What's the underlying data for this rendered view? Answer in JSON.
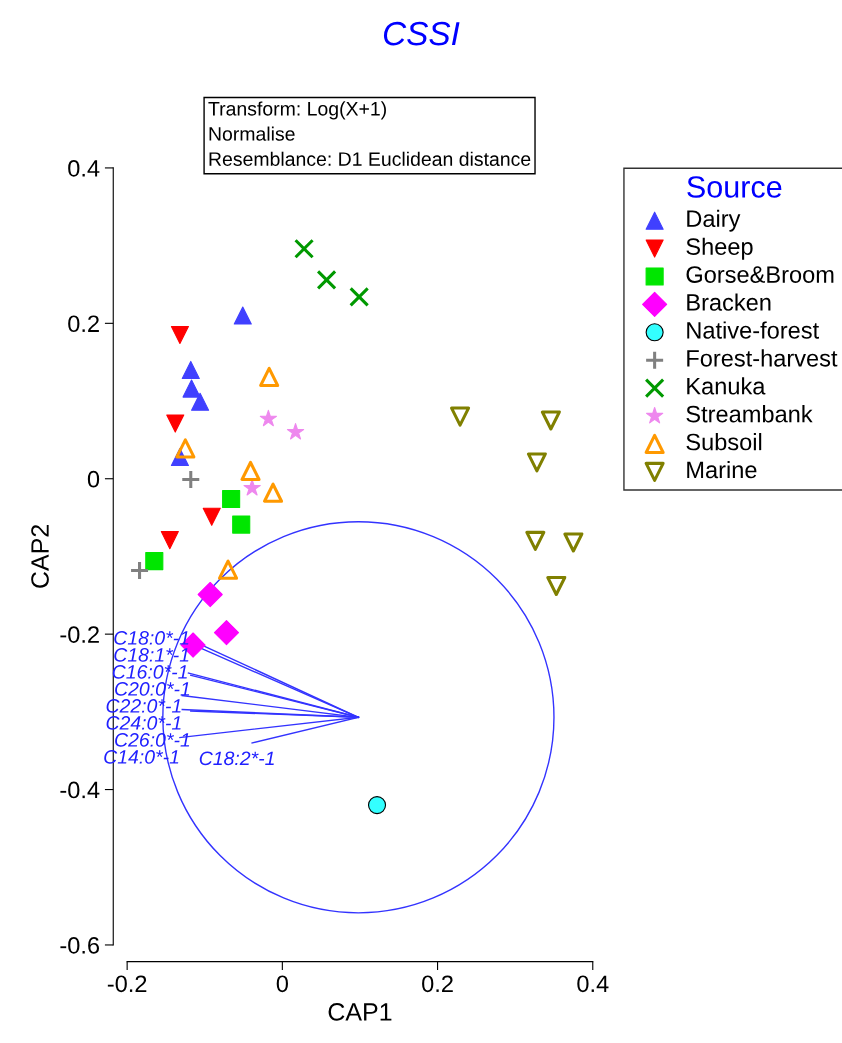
{
  "chart_data": {
    "type": "scatter",
    "title": "CSSI",
    "xlabel": "CAP1",
    "ylabel": "CAP2",
    "legend_title": "Source",
    "legend": "right",
    "grid": false,
    "xlim": [
      -0.2,
      0.4
    ],
    "xticks": [
      -0.2,
      0,
      0.2,
      0.4
    ],
    "ylim": [
      -0.6,
      0.4
    ],
    "yticks": [
      -0.6,
      -0.4,
      -0.2,
      0,
      0.2,
      0.4
    ],
    "annotations": [
      "Transform: Log(X+1)\nNormalise\nResemblance: D1 Euclidean distance",
      "C18:0*-1",
      "C18:1*-1",
      "C16:0*-1",
      "C20:0*-1",
      "C22:0*-1",
      "C24:0*-1",
      "C26:0*-1",
      "C14:0*-1",
      "C18:2*-1"
    ],
    "series": [
      {
        "name": "Dairy",
        "color": "#4040ff",
        "marker": "triangle",
        "x": [
          -0.051,
          -0.118,
          -0.117,
          -0.106,
          -0.132
        ],
        "values": [
          0.21,
          0.14,
          0.116,
          0.099,
          0.028
        ]
      },
      {
        "name": "Sheep",
        "color": "#ff0000",
        "marker": "triangle_down",
        "x": [
          -0.132,
          -0.138,
          -0.091,
          -0.145
        ],
        "values": [
          0.185,
          0.071,
          -0.049,
          -0.079
        ]
      },
      {
        "name": "Gorse&Broom",
        "color": "#00e600",
        "marker": "square",
        "x": [
          -0.066,
          -0.053,
          -0.165
        ],
        "values": [
          -0.026,
          -0.059,
          -0.106
        ]
      },
      {
        "name": "Bracken",
        "color": "#ff00ff",
        "marker": "diamond",
        "x": [
          -0.093,
          -0.072,
          -0.115
        ],
        "values": [
          -0.149,
          -0.198,
          -0.214
        ]
      },
      {
        "name": "Native-forest",
        "color": "#33ffff",
        "marker": "circle",
        "x": [
          0.122
        ],
        "values": [
          -0.42
        ]
      },
      {
        "name": "Forest-harvest",
        "color": "#808080",
        "marker": "plus",
        "x": [
          -0.118,
          -0.184
        ],
        "values": [
          -0.001,
          -0.118
        ]
      },
      {
        "name": "Kanuka",
        "color": "#009900",
        "marker": "cross",
        "x": [
          0.028,
          0.057,
          0.099
        ],
        "values": [
          0.296,
          0.256,
          0.234
        ]
      },
      {
        "name": "Streambank",
        "color": "#ee88ee",
        "marker": "star",
        "x": [
          -0.018,
          0.017,
          -0.039
        ],
        "values": [
          0.077,
          0.06,
          -0.012
        ]
      },
      {
        "name": "Subsoil",
        "color": "#ff9900",
        "marker": "triangle",
        "x": [
          -0.017,
          -0.125,
          -0.041,
          -0.012,
          -0.07
        ],
        "values": [
          0.131,
          0.039,
          0.01,
          -0.018,
          -0.117
        ]
      },
      {
        "name": "Marine",
        "color": "#808000",
        "marker": "triangle_down",
        "x": [
          0.229,
          0.346,
          0.328,
          0.326,
          0.375,
          0.353
        ],
        "values": [
          0.08,
          0.075,
          0.021,
          -0.08,
          -0.082,
          -0.138
        ]
      },
      {
        "type": "line",
        "color": "#3333ff",
        "x": [
          0.098,
          -0.119
        ],
        "values": [
          -0.307,
          -0.207
        ]
      },
      {
        "type": "line",
        "color": "#3333ff",
        "x": [
          0.098,
          -0.119
        ],
        "values": [
          -0.307,
          -0.212
        ]
      },
      {
        "type": "line",
        "color": "#3333ff",
        "x": [
          0.098,
          -0.121
        ],
        "values": [
          -0.307,
          -0.25
        ]
      },
      {
        "type": "line",
        "color": "#3333ff",
        "x": [
          0.098,
          -0.118
        ],
        "values": [
          -0.307,
          -0.253
        ]
      },
      {
        "type": "line",
        "color": "#3333ff",
        "x": [
          0.098,
          -0.129
        ],
        "values": [
          -0.307,
          -0.279
        ]
      },
      {
        "type": "line",
        "color": "#3333ff",
        "x": [
          0.098,
          -0.129
        ],
        "values": [
          -0.307,
          -0.297
        ]
      },
      {
        "type": "line",
        "color": "#3333ff",
        "x": [
          0.098,
          -0.118
        ],
        "values": [
          -0.307,
          -0.299
        ]
      },
      {
        "type": "line",
        "color": "#3333ff",
        "x": [
          0.098,
          -0.132
        ],
        "values": [
          -0.307,
          -0.333
        ]
      },
      {
        "type": "line",
        "color": "#3333ff",
        "x": [
          0.098,
          -0.039
        ],
        "values": [
          -0.307,
          -0.34
        ]
      }
    ]
  }
}
